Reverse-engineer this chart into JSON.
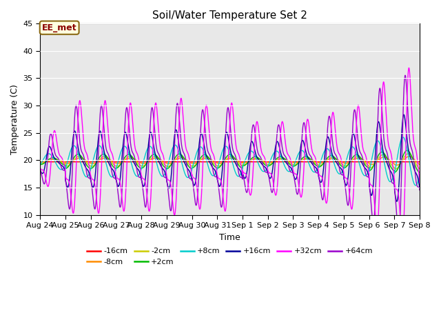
{
  "title": "Soil/Water Temperature Set 2",
  "xlabel": "Time",
  "ylabel": "Temperature (C)",
  "ylim": [
    10,
    45
  ],
  "yticks": [
    10,
    15,
    20,
    25,
    30,
    35,
    40,
    45
  ],
  "background_color": "#ffffff",
  "plot_bg_color": "#e8e8e8",
  "grid_color": "#ffffff",
  "annotation_text": "EE_met",
  "annotation_bg": "#ffffe0",
  "annotation_border": "#8b6914",
  "annotation_text_color": "#8b0000",
  "x_tick_labels": [
    "Aug 24",
    "Aug 25",
    "Aug 26",
    "Aug 27",
    "Aug 28",
    "Aug 29",
    "Aug 30",
    "Aug 31",
    "Sep 1",
    "Sep 2",
    "Sep 3",
    "Sep 4",
    "Sep 5",
    "Sep 6",
    "Sep 7",
    "Sep 8"
  ],
  "legend_items": [
    {
      "label": "-16cm",
      "color": "#ff0000"
    },
    {
      "label": "-8cm",
      "color": "#ff8c00"
    },
    {
      "label": "-2cm",
      "color": "#cccc00"
    },
    {
      "label": "+2cm",
      "color": "#00bb00"
    },
    {
      "label": "+8cm",
      "color": "#00cccc"
    },
    {
      "label": "+16cm",
      "color": "#000099"
    },
    {
      "label": "+32cm",
      "color": "#ff00ff"
    },
    {
      "label": "+64cm",
      "color": "#9900cc"
    }
  ],
  "base_temp": 19.8,
  "n_days": 15
}
